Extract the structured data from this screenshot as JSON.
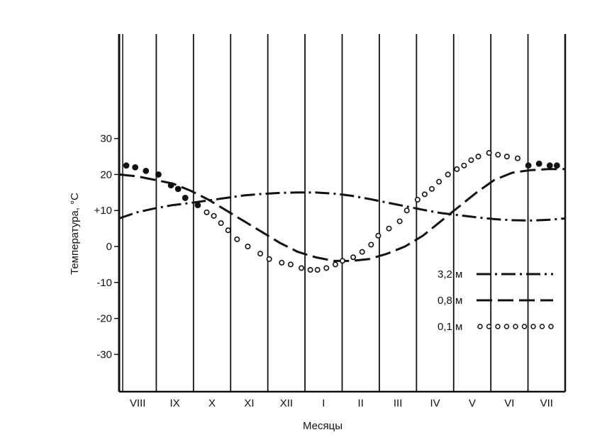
{
  "chart_data": {
    "type": "line",
    "xlabel": "Месяцы",
    "ylabel": "Температура, °С",
    "categories": [
      "VIII",
      "IX",
      "X",
      "XI",
      "XII",
      "I",
      "II",
      "III",
      "IV",
      "V",
      "VI",
      "VII"
    ],
    "yticks": [
      {
        "value": 30,
        "label": "30"
      },
      {
        "value": 20,
        "label": "20"
      },
      {
        "value": 10,
        "label": "+10"
      },
      {
        "value": 0,
        "label": "0"
      },
      {
        "value": -10,
        "label": "-10"
      },
      {
        "value": -20,
        "label": "-20"
      },
      {
        "value": -30,
        "label": "-30"
      }
    ],
    "ylim": [
      -40,
      60
    ],
    "xlim": [
      0,
      12.5
    ],
    "grid": "vertical month dividers",
    "legend": "bottom-right, inside plot",
    "series": [
      {
        "name": "3,2 м",
        "style": "dash-dot",
        "x": [
          0,
          0.5,
          1,
          1.5,
          2,
          2.5,
          3,
          3.5,
          4,
          4.5,
          5,
          5.5,
          6,
          6.5,
          7,
          7.5,
          8,
          8.5,
          9,
          9.5,
          10,
          10.5,
          11,
          11.5,
          12,
          12.5
        ],
        "y": [
          7.8,
          9.5,
          10.6,
          11.5,
          12.1,
          12.8,
          13.5,
          14.2,
          14.6,
          14.9,
          15,
          15,
          14.7,
          14.1,
          13.2,
          12.2,
          11.2,
          10.2,
          9.3,
          8.7,
          8.1,
          7.6,
          7.3,
          7.2,
          7.4,
          7.8
        ]
      },
      {
        "name": "0,8 м",
        "style": "long-dash",
        "x": [
          0,
          0.5,
          1,
          1.5,
          2,
          2.5,
          3,
          3.5,
          4,
          4.5,
          5,
          5.5,
          6,
          6.5,
          7,
          7.5,
          8,
          8.5,
          9,
          9.5,
          10,
          10.5,
          11,
          11.5,
          12,
          12.5
        ],
        "y": [
          20,
          19.5,
          18.5,
          17.5,
          15.5,
          13,
          10,
          7,
          4,
          1,
          -1.5,
          -3,
          -4,
          -4,
          -3.5,
          -2,
          0,
          3,
          7,
          11,
          15,
          18.5,
          20.5,
          21.2,
          21.5,
          21.5
        ]
      },
      {
        "name": "0,1 м",
        "style": "dotted",
        "x": [
          0.2,
          0.45,
          0.75,
          1.1,
          1.45,
          1.65,
          1.85,
          2.2,
          2.45,
          2.65,
          2.85,
          3.05,
          3.3,
          3.6,
          3.95,
          4.2,
          4.55,
          4.8,
          5.1,
          5.35,
          5.55,
          5.8,
          6.05,
          6.25,
          6.55,
          6.8,
          7.05,
          7.25,
          7.55,
          7.85,
          8.05,
          8.35,
          8.55,
          8.75,
          8.95,
          9.2,
          9.45,
          9.65,
          9.85,
          10.05,
          10.35,
          10.6,
          10.85,
          11.15,
          11.45,
          11.75,
          12.05,
          12.25
        ],
        "y": [
          22.5,
          22,
          21,
          20,
          17,
          16,
          13.5,
          11.5,
          9.5,
          8.5,
          6.5,
          4.5,
          2,
          0,
          -2,
          -3.5,
          -4.5,
          -5,
          -6,
          -6.5,
          -6.5,
          -6,
          -5,
          -4,
          -3,
          -1.5,
          0.5,
          3,
          5,
          7,
          10,
          13,
          14.5,
          16,
          18,
          20,
          21.5,
          22.5,
          24,
          25,
          26,
          25.5,
          25,
          24.5,
          22.5,
          23,
          22.5,
          22.5
        ]
      }
    ]
  }
}
